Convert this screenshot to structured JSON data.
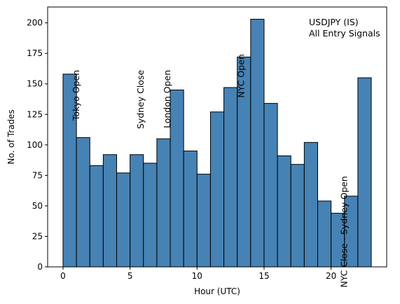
{
  "chart_data": {
    "type": "bar",
    "title": "",
    "xlabel": "Hour (UTC)",
    "ylabel": "No. of Trades",
    "bins": [
      0,
      1,
      2,
      3,
      4,
      5,
      6,
      7,
      8,
      9,
      10,
      11,
      12,
      13,
      14,
      15,
      16,
      17,
      18,
      19,
      20,
      21,
      22
    ],
    "values": [
      158,
      106,
      83,
      92,
      77,
      92,
      85,
      105,
      145,
      95,
      76,
      127,
      147,
      172,
      203,
      134,
      91,
      84,
      102,
      54,
      44,
      58,
      155
    ],
    "xlim": [
      -1.15,
      24.15
    ],
    "ylim": [
      0,
      213
    ],
    "xticks": [
      0,
      5,
      10,
      15,
      20
    ],
    "yticks": [
      0,
      25,
      50,
      75,
      100,
      125,
      150,
      175,
      200
    ],
    "bar_color": "#4682b4",
    "edge_color": "#000000",
    "grid": false,
    "annotations": [
      {
        "text": "Tokyo Open",
        "x": 1.0,
        "y_top": 162
      },
      {
        "text": "Sydney Close",
        "x": 5.8,
        "y_top": 162
      },
      {
        "text": "London Open",
        "x": 7.8,
        "y_top": 162
      },
      {
        "text": "NYC Open",
        "x": 13.3,
        "y_top": 175
      },
      {
        "text": "NYC Close - Sydney Open",
        "x": 21.0,
        "y_top": 75
      }
    ],
    "legend_text": [
      "USDJPY (IS)",
      "All Entry Signals"
    ],
    "legend_placement": "top-right"
  }
}
